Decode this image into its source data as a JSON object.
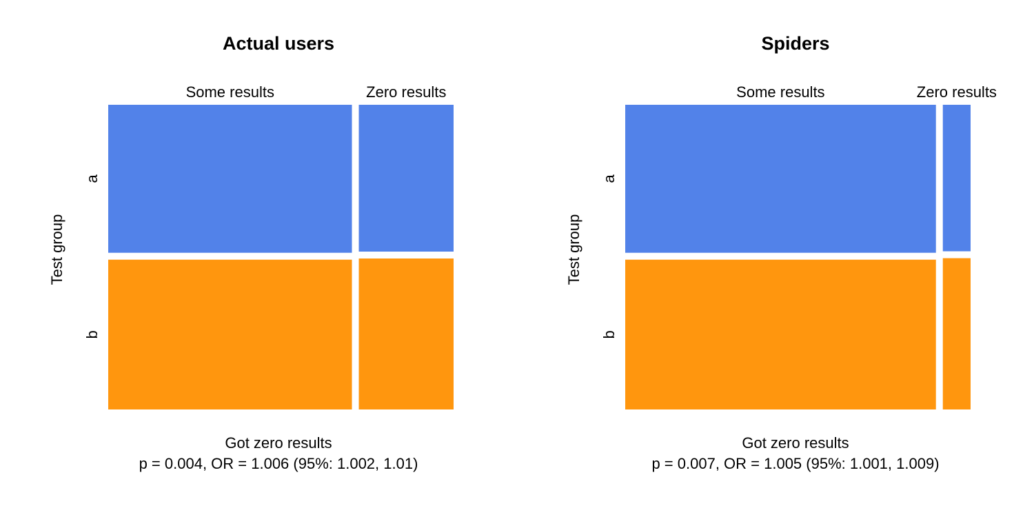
{
  "colors": {
    "a": "#5282E9",
    "b": "#FF960E",
    "gap": "#ffffff",
    "background": "#ffffff"
  },
  "chart_data": [
    {
      "type": "mosaic",
      "title": "Actual users",
      "xlabel": "Got zero results",
      "ylabel": "Test group",
      "stat_line": "p = 0.004, OR = 1.006 (95%: 1.002, 1.01)",
      "x_categories": [
        "Some results",
        "Zero results"
      ],
      "y_categories": [
        "a",
        "b"
      ],
      "x_proportions": [
        0.72,
        0.28
      ],
      "y_proportions_within_x": [
        [
          0.497,
          0.503
        ],
        [
          0.493,
          0.507
        ]
      ]
    },
    {
      "type": "mosaic",
      "title": "Spiders",
      "xlabel": "Got zero results",
      "ylabel": "Test group",
      "stat_line": "p = 0.007, OR = 1.005 (95%: 1.001, 1.009)",
      "x_categories": [
        "Some results",
        "Zero results"
      ],
      "y_categories": [
        "a",
        "b"
      ],
      "x_proportions": [
        0.918,
        0.082
      ],
      "y_proportions_within_x": [
        [
          0.497,
          0.503
        ],
        [
          0.492,
          0.508
        ]
      ]
    }
  ]
}
